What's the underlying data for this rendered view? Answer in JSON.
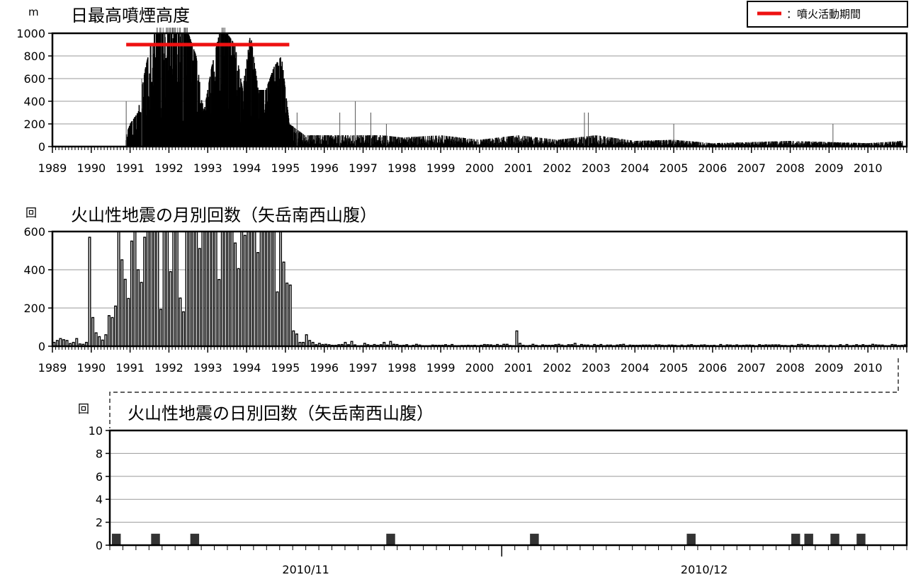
{
  "chart_data": [
    {
      "type": "bar",
      "title": "日最高噴煙高度",
      "unit": "m",
      "ylim": [
        0,
        1000
      ],
      "yticks": [
        0,
        200,
        400,
        600,
        800,
        1000
      ],
      "xlim": [
        1989,
        2011
      ],
      "xticks": [
        "1989",
        "1990",
        "1991",
        "1992",
        "1993",
        "1994",
        "1995",
        "1996",
        "1997",
        "1998",
        "1999",
        "2000",
        "2001",
        "2002",
        "2003",
        "2004",
        "2005",
        "2006",
        "2007",
        "2008",
        "2009",
        "2010"
      ],
      "grid": true,
      "legend": {
        "label": "：噴火活動期間",
        "position": "top-right",
        "color": "#ee1111"
      },
      "eruption_period": {
        "start": 1990.9,
        "end": 1995.1,
        "y": 900
      },
      "series_color": "#000000",
      "envelope": [
        {
          "x": 1990.9,
          "y": 100
        },
        {
          "x": 1991.0,
          "y": 200
        },
        {
          "x": 1991.2,
          "y": 300
        },
        {
          "x": 1991.4,
          "y": 700
        },
        {
          "x": 1991.6,
          "y": 1000
        },
        {
          "x": 1991.8,
          "y": 1000
        },
        {
          "x": 1992.0,
          "y": 1000
        },
        {
          "x": 1992.2,
          "y": 1000
        },
        {
          "x": 1992.5,
          "y": 1000
        },
        {
          "x": 1992.7,
          "y": 800
        },
        {
          "x": 1992.9,
          "y": 300
        },
        {
          "x": 1993.1,
          "y": 700
        },
        {
          "x": 1993.3,
          "y": 1000
        },
        {
          "x": 1993.5,
          "y": 1000
        },
        {
          "x": 1993.7,
          "y": 900
        },
        {
          "x": 1993.9,
          "y": 500
        },
        {
          "x": 1994.1,
          "y": 1000
        },
        {
          "x": 1994.3,
          "y": 500
        },
        {
          "x": 1994.5,
          "y": 500
        },
        {
          "x": 1994.7,
          "y": 700
        },
        {
          "x": 1994.9,
          "y": 800
        },
        {
          "x": 1995.1,
          "y": 200
        },
        {
          "x": 1995.5,
          "y": 100
        },
        {
          "x": 1996.0,
          "y": 100
        },
        {
          "x": 1996.5,
          "y": 100
        },
        {
          "x": 1997.0,
          "y": 100
        },
        {
          "x": 1997.5,
          "y": 100
        },
        {
          "x": 1998.0,
          "y": 80
        },
        {
          "x": 1999.0,
          "y": 100
        },
        {
          "x": 2000.0,
          "y": 60
        },
        {
          "x": 2001.0,
          "y": 100
        },
        {
          "x": 2002.0,
          "y": 60
        },
        {
          "x": 2003.0,
          "y": 100
        },
        {
          "x": 2004.0,
          "y": 50
        },
        {
          "x": 2005.0,
          "y": 60
        },
        {
          "x": 2006.0,
          "y": 30
        },
        {
          "x": 2007.0,
          "y": 40
        },
        {
          "x": 2008.0,
          "y": 50
        },
        {
          "x": 2009.0,
          "y": 40
        },
        {
          "x": 2010.0,
          "y": 30
        },
        {
          "x": 2010.9,
          "y": 50
        }
      ],
      "spikes": [
        {
          "x": 1990.9,
          "y": 400
        },
        {
          "x": 1991.3,
          "y": 600
        },
        {
          "x": 1995.3,
          "y": 300
        },
        {
          "x": 1996.4,
          "y": 300
        },
        {
          "x": 1996.8,
          "y": 400
        },
        {
          "x": 1997.2,
          "y": 300
        },
        {
          "x": 1997.6,
          "y": 200
        },
        {
          "x": 2002.7,
          "y": 300
        },
        {
          "x": 2002.8,
          "y": 300
        },
        {
          "x": 2005.0,
          "y": 200
        },
        {
          "x": 2009.1,
          "y": 200
        }
      ]
    },
    {
      "type": "bar",
      "title": "火山性地震の月別回数（矢岳南西山腹）",
      "unit": "回",
      "ylim": [
        0,
        600
      ],
      "yticks": [
        0,
        200,
        400,
        600
      ],
      "xlim": [
        1989,
        2011
      ],
      "xticks": [
        "1989",
        "1990",
        "1991",
        "1992",
        "1993",
        "1994",
        "1995",
        "1996",
        "1997",
        "1998",
        "1999",
        "2000",
        "2001",
        "2002",
        "2003",
        "2004",
        "2005",
        "2006",
        "2007",
        "2008",
        "2009",
        "2010"
      ],
      "grid": true,
      "series_color": "#000000",
      "values_by_month": [
        {
          "x": 1989.0,
          "y": 20
        },
        {
          "x": 1989.1,
          "y": 30
        },
        {
          "x": 1989.2,
          "y": 40
        },
        {
          "x": 1989.3,
          "y": 30
        },
        {
          "x": 1989.5,
          "y": 20
        },
        {
          "x": 1989.6,
          "y": 40
        },
        {
          "x": 1989.8,
          "y": 20
        },
        {
          "x": 1989.9,
          "y": 570
        },
        {
          "x": 1990.0,
          "y": 150
        },
        {
          "x": 1990.1,
          "y": 70
        },
        {
          "x": 1990.2,
          "y": 50
        },
        {
          "x": 1990.3,
          "y": 60
        },
        {
          "x": 1990.4,
          "y": 160
        },
        {
          "x": 1990.5,
          "y": 150
        },
        {
          "x": 1990.6,
          "y": 210
        },
        {
          "x": 1990.7,
          "y": 600
        },
        {
          "x": 1990.8,
          "y": 350
        },
        {
          "x": 1990.9,
          "y": 250
        },
        {
          "x": 1991.0,
          "y": 550
        },
        {
          "x": 1991.1,
          "y": 600
        },
        {
          "x": 1991.2,
          "y": 400
        },
        {
          "x": 1991.3,
          "y": 570
        },
        {
          "x": 1991.4,
          "y": 600
        },
        {
          "x": 1991.5,
          "y": 600
        },
        {
          "x": 1991.6,
          "y": 600
        },
        {
          "x": 1991.7,
          "y": 600
        },
        {
          "x": 1991.8,
          "y": 600
        },
        {
          "x": 1991.9,
          "y": 600
        },
        {
          "x": 1992.0,
          "y": 390
        },
        {
          "x": 1992.1,
          "y": 600
        },
        {
          "x": 1992.2,
          "y": 600
        },
        {
          "x": 1992.3,
          "y": 180
        },
        {
          "x": 1992.4,
          "y": 600
        },
        {
          "x": 1992.5,
          "y": 600
        },
        {
          "x": 1992.6,
          "y": 600
        },
        {
          "x": 1992.7,
          "y": 600
        },
        {
          "x": 1992.8,
          "y": 600
        },
        {
          "x": 1992.9,
          "y": 600
        },
        {
          "x": 1993.0,
          "y": 600
        },
        {
          "x": 1993.1,
          "y": 600
        },
        {
          "x": 1993.2,
          "y": 600
        },
        {
          "x": 1993.3,
          "y": 600
        },
        {
          "x": 1993.4,
          "y": 600
        },
        {
          "x": 1993.5,
          "y": 600
        },
        {
          "x": 1993.6,
          "y": 600
        },
        {
          "x": 1993.7,
          "y": 540
        },
        {
          "x": 1993.8,
          "y": 600
        },
        {
          "x": 1993.9,
          "y": 580
        },
        {
          "x": 1994.0,
          "y": 600
        },
        {
          "x": 1994.1,
          "y": 600
        },
        {
          "x": 1994.2,
          "y": 600
        },
        {
          "x": 1994.3,
          "y": 600
        },
        {
          "x": 1994.4,
          "y": 600
        },
        {
          "x": 1994.5,
          "y": 600
        },
        {
          "x": 1994.6,
          "y": 600
        },
        {
          "x": 1994.7,
          "y": 600
        },
        {
          "x": 1994.8,
          "y": 600
        },
        {
          "x": 1994.9,
          "y": 440
        },
        {
          "x": 1995.0,
          "y": 330
        },
        {
          "x": 1995.1,
          "y": 320
        },
        {
          "x": 1995.2,
          "y": 80
        },
        {
          "x": 1995.3,
          "y": 20
        },
        {
          "x": 1995.4,
          "y": 20
        },
        {
          "x": 1995.5,
          "y": 60
        },
        {
          "x": 1995.6,
          "y": 30
        },
        {
          "x": 1995.7,
          "y": 20
        },
        {
          "x": 1995.8,
          "y": 15
        },
        {
          "x": 1996.0,
          "y": 10
        },
        {
          "x": 1996.5,
          "y": 20
        },
        {
          "x": 1996.7,
          "y": 25
        },
        {
          "x": 1997.0,
          "y": 15
        },
        {
          "x": 1997.5,
          "y": 20
        },
        {
          "x": 1997.7,
          "y": 25
        },
        {
          "x": 1998.0,
          "y": 5
        },
        {
          "x": 1999.0,
          "y": 5
        },
        {
          "x": 2000.0,
          "y": 5
        },
        {
          "x": 2000.9,
          "y": 80
        },
        {
          "x": 2001.0,
          "y": 15
        },
        {
          "x": 2001.3,
          "y": 10
        },
        {
          "x": 2002.0,
          "y": 10
        },
        {
          "x": 2002.4,
          "y": 15
        },
        {
          "x": 2003.0,
          "y": 5
        },
        {
          "x": 2004.0,
          "y": 5
        },
        {
          "x": 2005.0,
          "y": 5
        },
        {
          "x": 2006.0,
          "y": 5
        },
        {
          "x": 2007.0,
          "y": 5
        },
        {
          "x": 2008.0,
          "y": 5
        },
        {
          "x": 2009.0,
          "y": 5
        },
        {
          "x": 2010.0,
          "y": 5
        }
      ]
    },
    {
      "type": "bar",
      "title": "火山性地震の日別回数（矢岳南西山腹）",
      "unit": "回",
      "ylim": [
        0,
        10
      ],
      "yticks": [
        0,
        2,
        4,
        6,
        8,
        10
      ],
      "x_start_day": 1,
      "x_end_day": 61,
      "month_labels": [
        {
          "label": "2010/11",
          "day": 16
        },
        {
          "label": "2010/12",
          "day": 46.5
        }
      ],
      "month_divider_day": 31,
      "grid": true,
      "bar_color": "#333333",
      "days_with_events": [
        1,
        4,
        7,
        22,
        33,
        45,
        53,
        54,
        56,
        58
      ],
      "values": [
        1,
        1,
        1,
        1,
        1,
        1,
        1,
        1,
        1,
        1
      ]
    }
  ]
}
